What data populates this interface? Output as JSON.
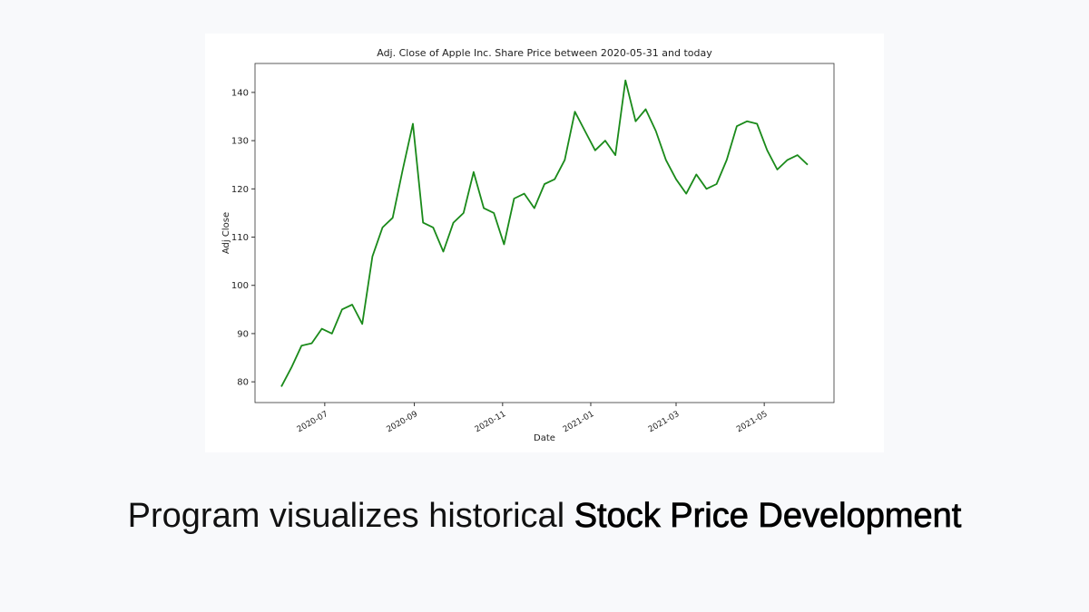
{
  "chart_data": {
    "type": "line",
    "title": "Adj. Close of Apple Inc. Share Price between 2020-05-31 and today",
    "x_label": "Date",
    "y_label": "Adj Close",
    "series": [
      {
        "name": "Adj Close",
        "color": "#1a8a1a",
        "values": [
          79,
          83,
          87.5,
          88,
          91,
          90,
          95,
          96,
          92,
          106,
          112,
          114,
          124,
          133.5,
          113,
          112,
          107,
          113,
          115,
          123.5,
          116,
          115,
          108.5,
          118,
          119,
          116,
          121,
          122,
          126,
          136,
          132,
          128,
          130,
          127,
          142.5,
          134,
          136.5,
          132,
          126,
          122,
          119,
          123,
          120,
          121,
          126,
          133,
          134,
          133.5,
          128,
          124,
          126,
          127,
          125
        ]
      }
    ],
    "xlim": [
      -2.6,
      54.6
    ],
    "xticks": [
      {
        "value": 4.29,
        "label": "2020-07"
      },
      {
        "value": 13.14,
        "label": "2020-09"
      },
      {
        "value": 21.86,
        "label": "2020-11"
      },
      {
        "value": 30.57,
        "label": "2021-01"
      },
      {
        "value": 39,
        "label": "2021-03"
      },
      {
        "value": 47.71,
        "label": "2021-05"
      }
    ],
    "ylim": [
      75.7,
      146
    ],
    "yticks": [
      80,
      90,
      100,
      110,
      120,
      130,
      140
    ],
    "grid": false
  },
  "caption": {
    "text": "Program visualizes historical",
    "emphasis": "Stock Price Development"
  }
}
